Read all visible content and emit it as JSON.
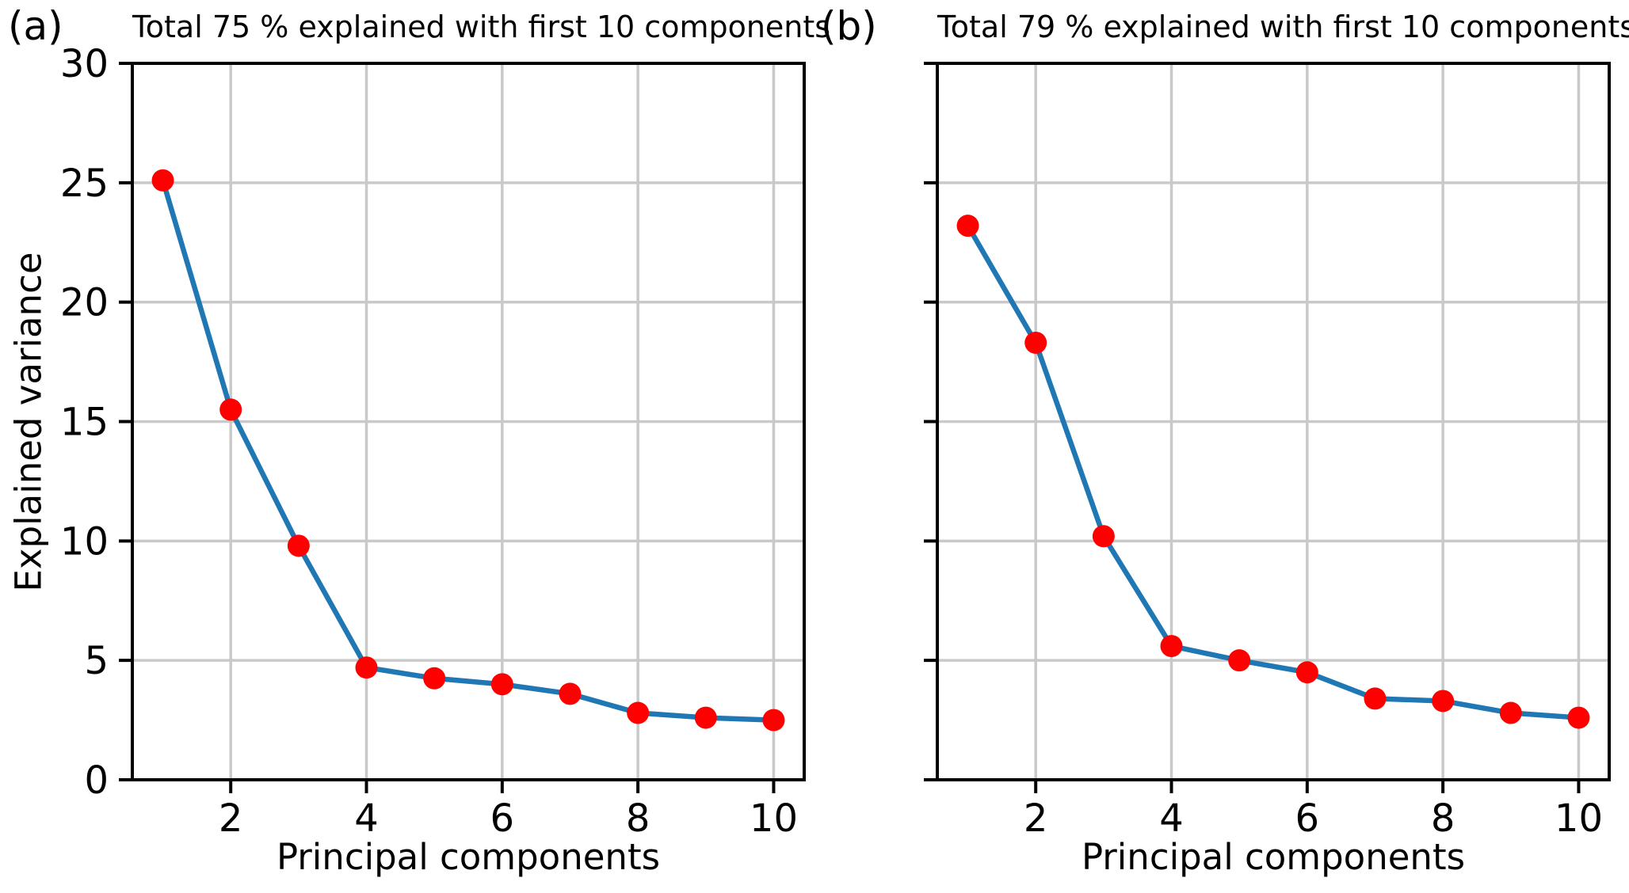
{
  "figure": {
    "background": "#ffffff",
    "line_color": "#1f77b4",
    "marker_color": "#fe0000",
    "grid_color": "#c9c9c9",
    "axis_color": "#000000",
    "text_color": "#000000"
  },
  "chart_data": [
    {
      "type": "line",
      "panel_label": "(a)",
      "title": "Total 75 % explained with first 10 components",
      "xlabel": "Principal components",
      "ylabel": "Explained variance",
      "legend": "none",
      "grid": true,
      "x": [
        1,
        2,
        3,
        4,
        5,
        6,
        7,
        8,
        9,
        10
      ],
      "values": [
        25.1,
        15.5,
        9.8,
        4.7,
        4.25,
        4.0,
        3.6,
        2.8,
        2.6,
        2.5
      ],
      "total_explained_pct": 75,
      "xticks": [
        2,
        4,
        6,
        8,
        10
      ],
      "yticks": [
        0,
        5,
        10,
        15,
        20,
        25,
        30
      ],
      "xtick_labels": [
        "2",
        "4",
        "6",
        "8",
        "10"
      ],
      "ytick_labels": [
        "0",
        "5",
        "10",
        "15",
        "20",
        "25",
        "30"
      ],
      "show_ytick_labels": true,
      "xlim": [
        0.55,
        10.45
      ],
      "ylim": [
        0,
        30
      ]
    },
    {
      "type": "line",
      "panel_label": "(b)",
      "title": "Total 79 % explained with first 10 components",
      "xlabel": "Principal components",
      "ylabel": "",
      "legend": "none",
      "grid": true,
      "x": [
        1,
        2,
        3,
        4,
        5,
        6,
        7,
        8,
        9,
        10
      ],
      "values": [
        23.2,
        18.3,
        10.2,
        5.6,
        5.0,
        4.5,
        3.4,
        3.3,
        2.8,
        2.6
      ],
      "total_explained_pct": 79,
      "xticks": [
        2,
        4,
        6,
        8,
        10
      ],
      "yticks": [
        0,
        5,
        10,
        15,
        20,
        25,
        30
      ],
      "xtick_labels": [
        "2",
        "4",
        "6",
        "8",
        "10"
      ],
      "ytick_labels": [],
      "show_ytick_labels": false,
      "xlim": [
        0.55,
        10.45
      ],
      "ylim": [
        0,
        30
      ]
    }
  ]
}
